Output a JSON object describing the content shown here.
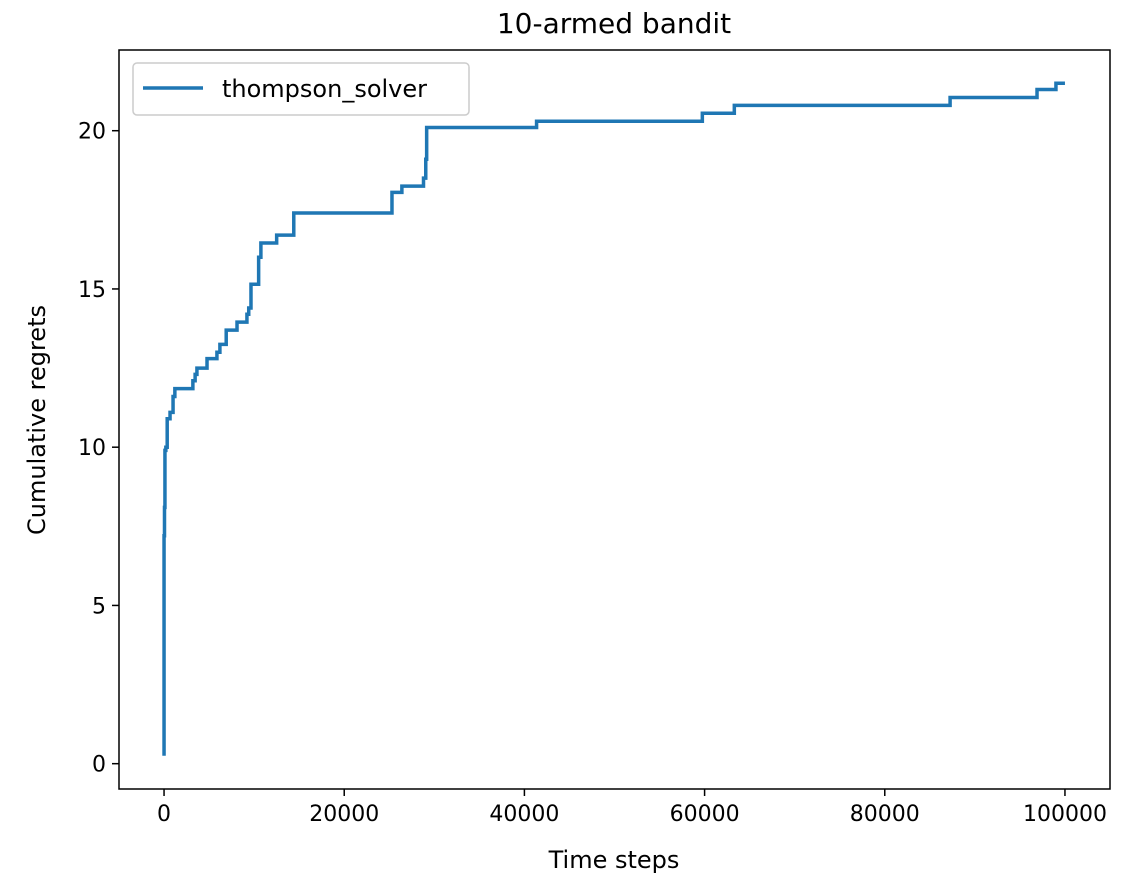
{
  "chart_data": {
    "type": "line",
    "title": "10-armed bandit",
    "xlabel": "Time steps",
    "ylabel": "Cumulative regrets",
    "xlim": [
      -5000,
      105000
    ],
    "ylim": [
      -0.8,
      22.55
    ],
    "xticks": [
      0,
      20000,
      40000,
      60000,
      80000,
      100000
    ],
    "yticks": [
      0,
      5,
      10,
      15,
      20
    ],
    "grid": false,
    "legend_position": "top-left",
    "color": "#1f77b4",
    "series": [
      {
        "name": "thompson_solver",
        "step": true,
        "x": [
          0,
          0,
          50,
          100,
          200,
          350,
          665,
          1000,
          1200,
          3200,
          3450,
          3650,
          4770,
          5870,
          6200,
          6900,
          8100,
          9200,
          9400,
          9650,
          10500,
          10750,
          12500,
          14400,
          25300,
          26400,
          28800,
          29050,
          29150,
          41350,
          59750,
          63300,
          87250,
          96900,
          99000,
          100000
        ],
        "y": [
          0.25,
          7.2,
          8.1,
          9.9,
          10.0,
          10.9,
          11.1,
          11.6,
          11.85,
          12.1,
          12.3,
          12.5,
          12.8,
          13.0,
          13.25,
          13.7,
          13.95,
          14.2,
          14.4,
          15.15,
          16.0,
          16.45,
          16.7,
          17.4,
          18.05,
          18.25,
          18.5,
          19.1,
          20.1,
          20.3,
          20.55,
          20.8,
          21.05,
          21.3,
          21.5,
          21.5
        ]
      }
    ]
  }
}
